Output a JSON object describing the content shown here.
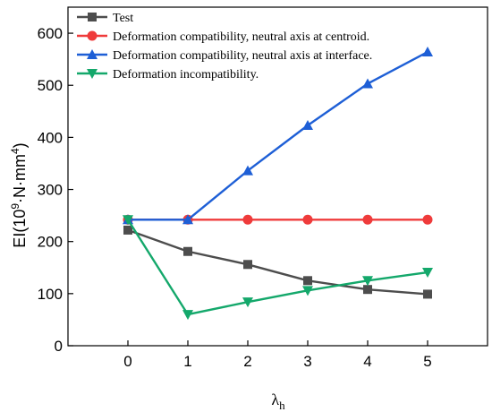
{
  "chart_data": {
    "type": "line",
    "x": [
      0,
      1,
      2,
      3,
      4,
      5
    ],
    "xlim": [
      -1,
      6
    ],
    "ylim": [
      0,
      650
    ],
    "xticks": [
      0,
      1,
      2,
      3,
      4,
      5
    ],
    "yticks": [
      0,
      100,
      200,
      300,
      400,
      500,
      600
    ],
    "xlabel": {
      "base": "λ",
      "sub": "h"
    },
    "ylabel": {
      "main": "EI(10",
      "exp1": "9",
      "mid": "·N·mm",
      "exp2": "4",
      "end": ")"
    },
    "legend_position": "top-left",
    "grid": false,
    "series": [
      {
        "name": "Test",
        "color": "#4d4d4d",
        "marker": "square",
        "values": [
          222,
          181,
          156,
          125,
          108,
          99
        ]
      },
      {
        "name": "Deformation compatibility, neutral axis at centroid.",
        "color": "#ef3b3b",
        "marker": "circle",
        "values": [
          242,
          242,
          242,
          242,
          242,
          242
        ]
      },
      {
        "name": "Deformation compatibility, neutral axis at interface.",
        "color": "#1e5fd6",
        "marker": "triangle-up",
        "values": [
          242,
          242,
          336,
          423,
          503,
          564
        ]
      },
      {
        "name": "Deformation incompatibility.",
        "color": "#14a86b",
        "marker": "triangle-down",
        "values": [
          242,
          60,
          84,
          106,
          125,
          141
        ]
      }
    ]
  }
}
